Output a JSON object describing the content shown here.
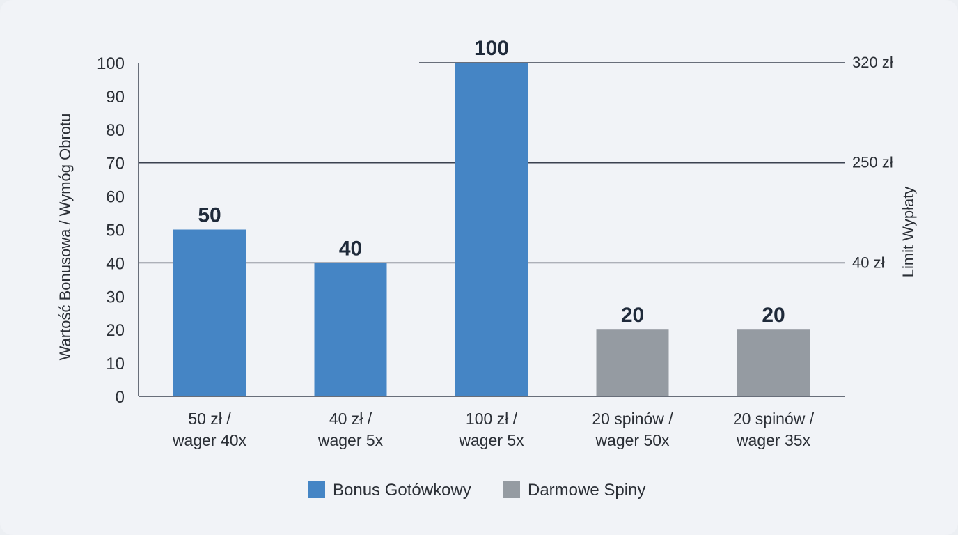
{
  "chart_data": {
    "type": "bar",
    "ylabel": "Wartość Bonusowa / Wymóg Obrotu",
    "y2label": "Limit Wypłaty",
    "ylim": [
      0,
      100
    ],
    "yticks": [
      "0",
      "10",
      "20",
      "30",
      "40",
      "50",
      "60",
      "70",
      "80",
      "90",
      "100"
    ],
    "categories": [
      [
        "50 zł /",
        "wager 40x"
      ],
      [
        "40 zł /",
        "wager 5x"
      ],
      [
        "100 zł /",
        "wager 5x"
      ],
      [
        "20 spinów /",
        "wager 50x"
      ],
      [
        "20 spinów /",
        "wager 35x"
      ]
    ],
    "values": [
      50,
      40,
      100,
      20,
      20
    ],
    "value_labels": [
      "50",
      "40",
      "100",
      "20",
      "20"
    ],
    "bar_series": [
      0,
      0,
      0,
      1,
      1
    ],
    "series": [
      {
        "name": "Bonus Gotówkowy",
        "color": "#4585c5"
      },
      {
        "name": "Darmowe Spiny",
        "color": "#959ba2"
      }
    ],
    "reference_lines": [
      {
        "y": 100,
        "label": "320 zł"
      },
      {
        "y": 70,
        "label": "250 zł"
      },
      {
        "y": 40,
        "label": "40 zł"
      }
    ],
    "grid": false,
    "legend_position": "bottom-center"
  }
}
